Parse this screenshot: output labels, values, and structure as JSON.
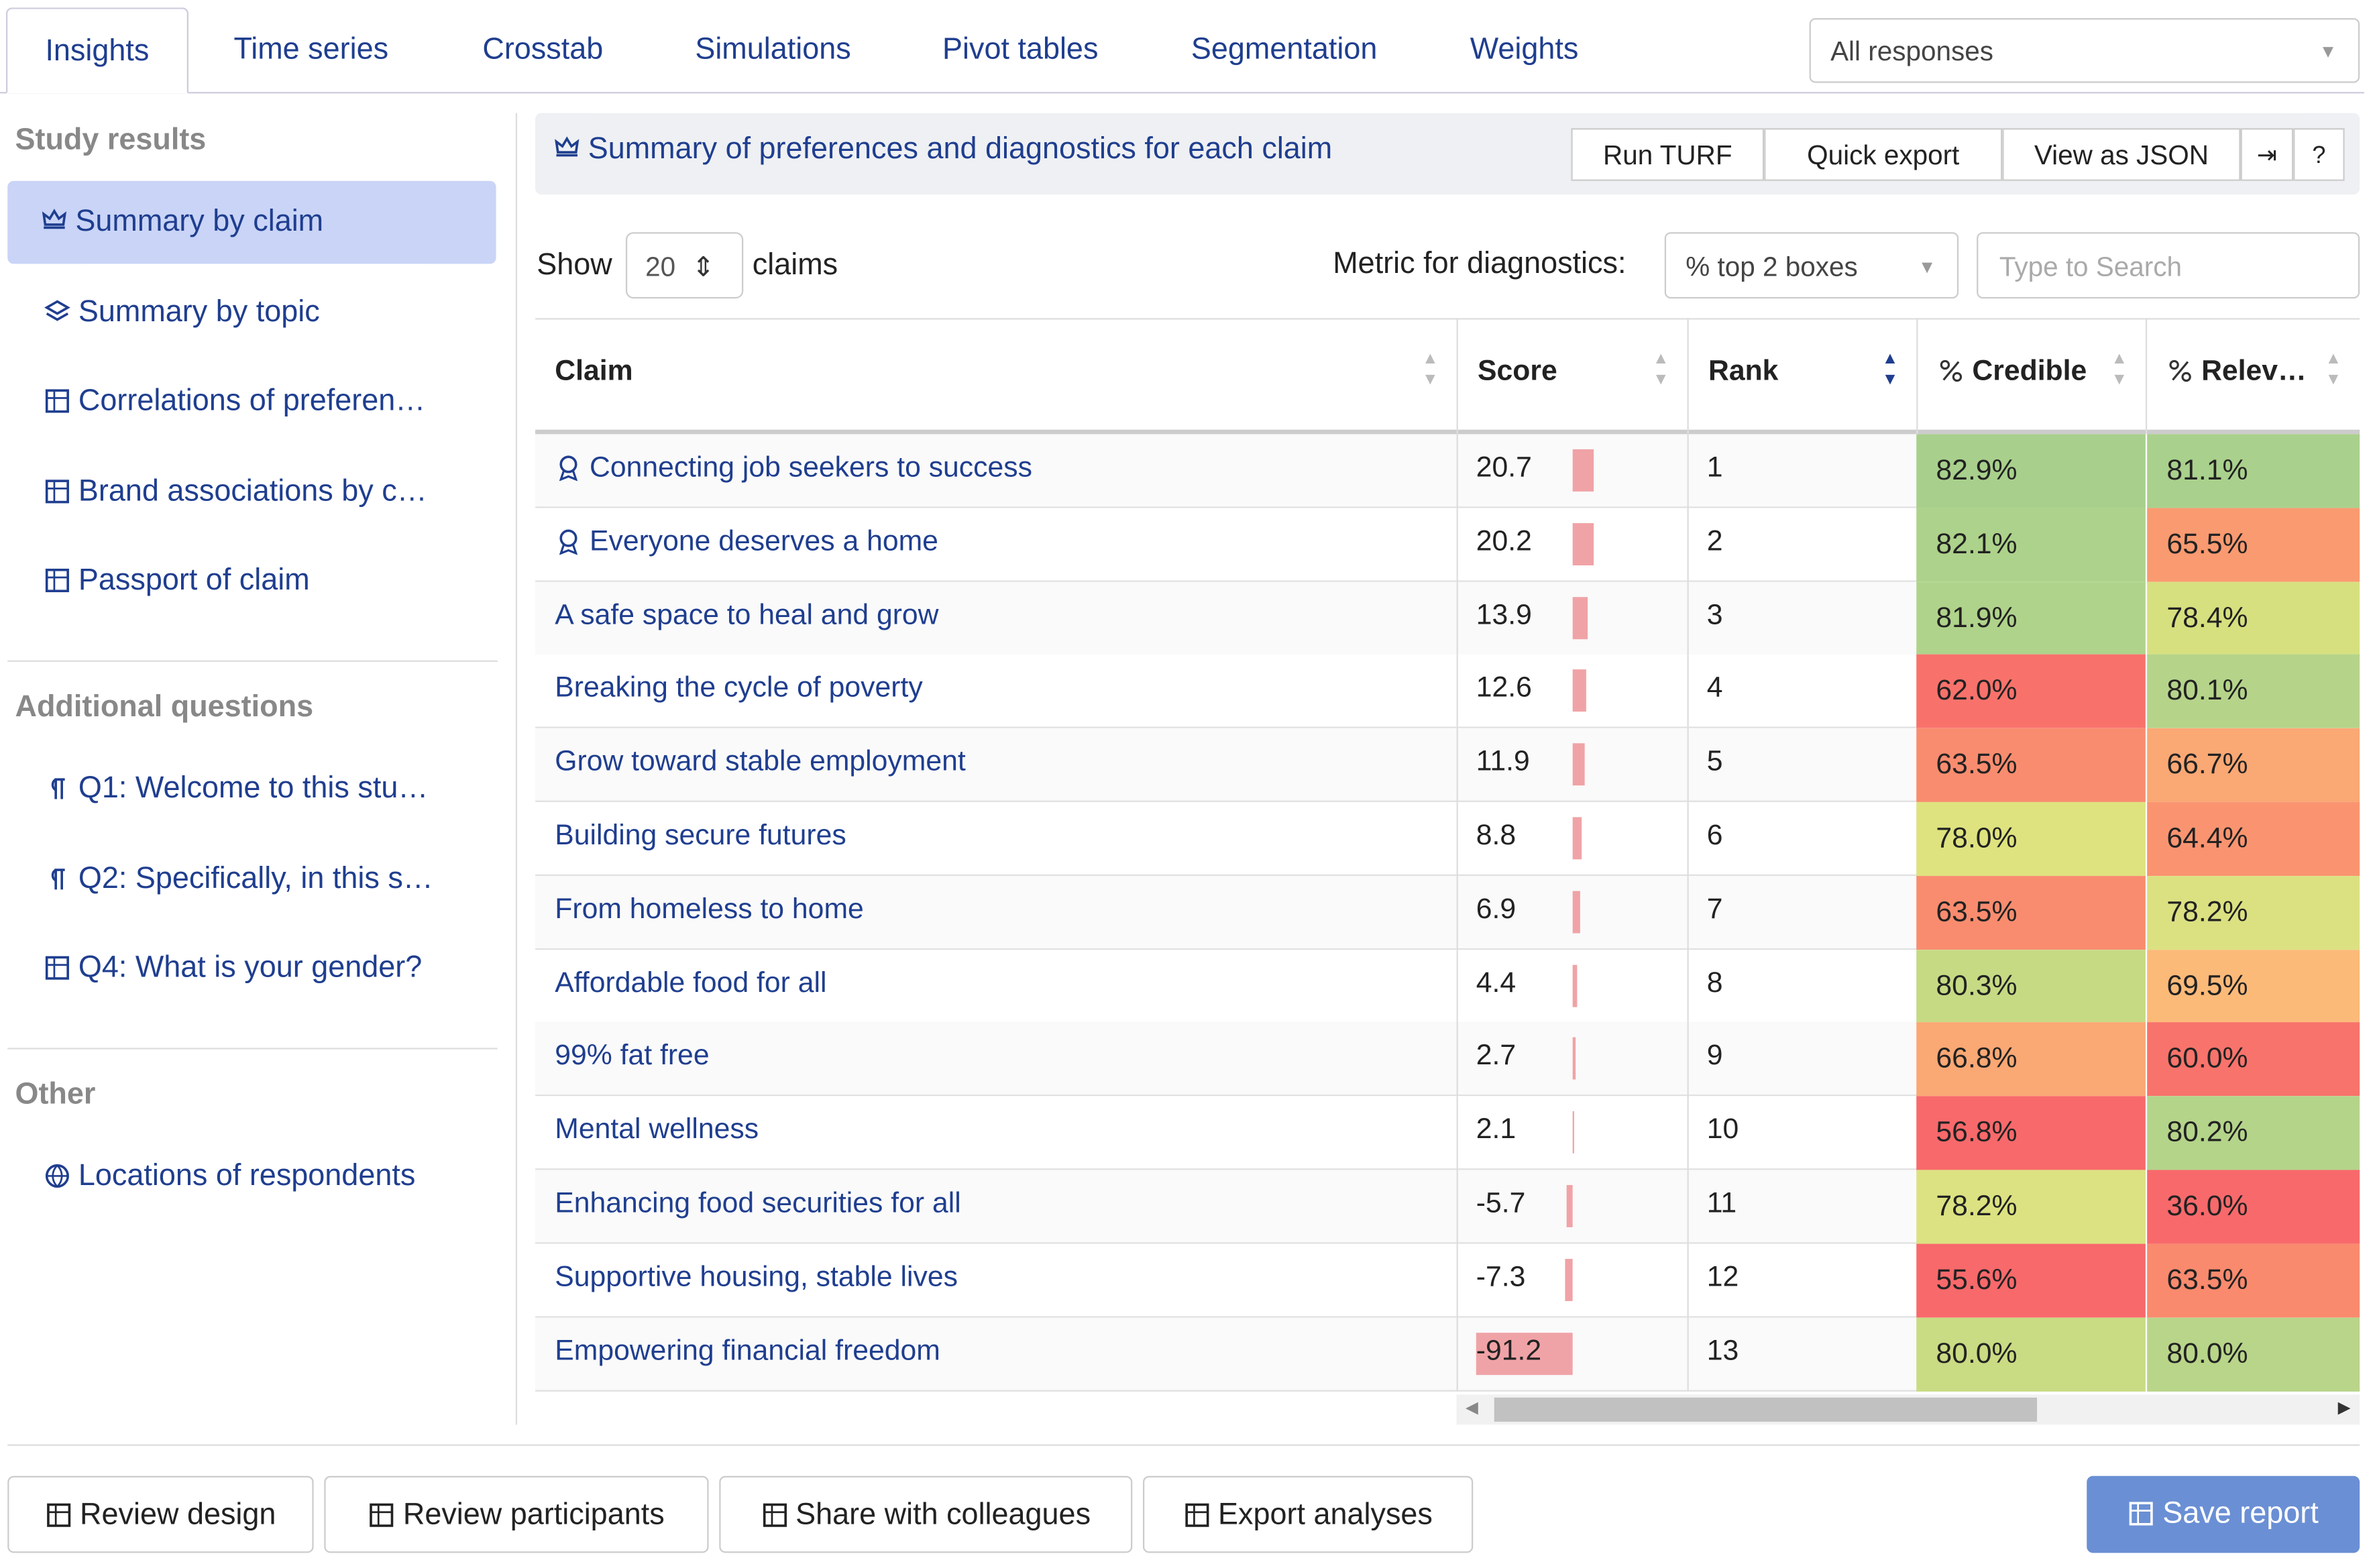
{
  "tabs": [
    "Insights",
    "Time series",
    "Crosstab",
    "Simulations",
    "Pivot tables",
    "Segmentation",
    "Weights"
  ],
  "response_filter": "All responses",
  "sidebar": {
    "sections": [
      {
        "title": "Study results",
        "items": [
          "Summary by claim",
          "Summary by topic",
          "Correlations of preferen…",
          "Brand associations by c…",
          "Passport of claim"
        ]
      },
      {
        "title": "Additional questions",
        "items": [
          "Q1: Welcome to this stu…",
          "Q2: Specifically, in this s…",
          "Q4: What is your gender?"
        ]
      },
      {
        "title": "Other",
        "items": [
          "Locations of respondents"
        ]
      }
    ]
  },
  "panel": {
    "title": "Summary of preferences and diagnostics for each claim",
    "actions": [
      "Run TURF",
      "Quick export",
      "View as JSON"
    ],
    "show_label": "Show",
    "page_size": 20,
    "page_size_unit": "claims",
    "metric_label": "Metric for diagnostics:",
    "metric": "% top 2 boxes",
    "search_placeholder": "Type to Search"
  },
  "table": {
    "columns": [
      "Claim",
      "Score",
      "Rank",
      "Credible",
      "Relev…"
    ],
    "bar_color": "#f0a3a6",
    "rows": [
      {
        "claim": "Connecting job seekers to success",
        "score": 20.7,
        "rank": 1,
        "credible": "82.9%",
        "credible_color": "#a8d08c",
        "relevant": "81.1%",
        "relevant_color": "#a9d08c"
      },
      {
        "claim": "Everyone deserves a home",
        "score": 20.2,
        "rank": 2,
        "credible": "82.1%",
        "credible_color": "#add28b",
        "relevant": "65.5%",
        "relevant_color": "#fa9a70"
      },
      {
        "claim": "A safe space to heal and grow",
        "score": 13.9,
        "rank": 3,
        "credible": "81.9%",
        "credible_color": "#b0d38b",
        "relevant": "78.4%",
        "relevant_color": "#d7e07f"
      },
      {
        "claim": "Breaking the cycle of poverty",
        "score": 12.6,
        "rank": 4,
        "credible": "62.0%",
        "credible_color": "#f8726b",
        "relevant": "80.1%",
        "relevant_color": "#b5d48a"
      },
      {
        "claim": "Grow toward stable employment",
        "score": 11.9,
        "rank": 5,
        "credible": "63.5%",
        "credible_color": "#f98c6f",
        "relevant": "66.7%",
        "relevant_color": "#faa874"
      },
      {
        "claim": "Building secure futures",
        "score": 8.8,
        "rank": 6,
        "credible": "78.0%",
        "credible_color": "#dee37f",
        "relevant": "64.4%",
        "relevant_color": "#fa9470"
      },
      {
        "claim": "From homeless to home",
        "score": 6.9,
        "rank": 7,
        "credible": "63.5%",
        "credible_color": "#f98c6f",
        "relevant": "78.2%",
        "relevant_color": "#dbe181"
      },
      {
        "claim": "Affordable food for all",
        "score": 4.4,
        "rank": 8,
        "credible": "80.3%",
        "credible_color": "#c6da84",
        "relevant": "69.5%",
        "relevant_color": "#fcba79"
      },
      {
        "claim": "99% fat free",
        "score": 2.7,
        "rank": 9,
        "credible": "66.8%",
        "credible_color": "#faa874",
        "relevant": "60.0%",
        "relevant_color": "#f8736b"
      },
      {
        "claim": "Mental wellness",
        "score": 2.1,
        "rank": 10,
        "credible": "56.8%",
        "credible_color": "#f8696b",
        "relevant": "80.2%",
        "relevant_color": "#b4d48a"
      },
      {
        "claim": "Enhancing food securities for all",
        "score": -5.7,
        "rank": 11,
        "credible": "78.2%",
        "credible_color": "#dce281",
        "relevant": "36.0%",
        "relevant_color": "#f8696b"
      },
      {
        "claim": "Supportive housing, stable lives",
        "score": -7.3,
        "rank": 12,
        "credible": "55.6%",
        "credible_color": "#f8696b",
        "relevant": "63.5%",
        "relevant_color": "#f98a6e"
      },
      {
        "claim": "Empowering financial freedom",
        "score": -91.2,
        "rank": 13,
        "credible": "80.0%",
        "credible_color": "#c9db83",
        "relevant": "80.0%",
        "relevant_color": "#b8d589"
      }
    ]
  },
  "footer": {
    "buttons": [
      "Review design",
      "Review participants",
      "Share with colleagues",
      "Export analyses"
    ],
    "save": "Save report"
  }
}
